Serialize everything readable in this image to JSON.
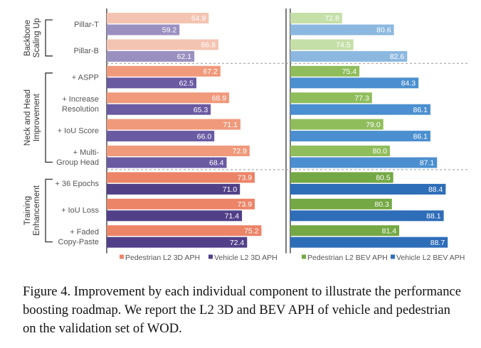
{
  "chart_data": {
    "type": "bar",
    "orientation": "horizontal",
    "categories": [
      [
        "Pillar-T"
      ],
      [
        "Pillar-B"
      ],
      [
        "+ ASPP"
      ],
      [
        "+ Increase",
        "Resolution"
      ],
      [
        "+ IoU Score"
      ],
      [
        "+ Multi-",
        "Group Head"
      ],
      [
        "+ 36 Epochs"
      ],
      [
        "+ IoU Loss"
      ],
      [
        "+ Faded",
        "Copy-Paste"
      ]
    ],
    "groups": [
      {
        "label": [
          "Backbone",
          "Scaling Up"
        ],
        "from": 0,
        "to": 1
      },
      {
        "label": [
          "Neck and Head",
          "Improvement"
        ],
        "from": 2,
        "to": 5
      },
      {
        "label": [
          "Training",
          "Enhancement"
        ],
        "from": 6,
        "to": 8
      }
    ],
    "panels": [
      {
        "series": [
          {
            "name": "Pedestrian L2 3D APH",
            "values": [
              64.9,
              66.8,
              67.2,
              68.9,
              71.1,
              72.9,
              73.9,
              73.9,
              75.2
            ],
            "colors": [
              "#f4c4b2",
              "#f4c4b2",
              "#f0997b",
              "#f0997b",
              "#f0997b",
              "#f0997b",
              "#ec8468",
              "#ec8468",
              "#ec8468"
            ]
          },
          {
            "name": "Vehicle L2 3D APH",
            "values": [
              59.2,
              62.1,
              62.5,
              65.3,
              66.0,
              68.4,
              71.0,
              71.4,
              72.4
            ],
            "colors": [
              "#9a90c0",
              "#9a90c0",
              "#6a5aa2",
              "#6a5aa2",
              "#6a5aa2",
              "#6a5aa2",
              "#514088",
              "#514088",
              "#514088"
            ]
          }
        ],
        "xlim": [
          45,
          80
        ]
      },
      {
        "series": [
          {
            "name": "Pedestrian L2 BEV APH",
            "values": [
              72.8,
              74.5,
              75.4,
              77.3,
              79.0,
              80.0,
              80.5,
              80.3,
              81.4
            ],
            "colors": [
              "#c5dfa8",
              "#c5dfa8",
              "#8fbd5c",
              "#8fbd5c",
              "#8fbd5c",
              "#8fbd5c",
              "#74a844",
              "#74a844",
              "#74a844"
            ]
          },
          {
            "name": "Vehicle L2 BEV APH",
            "values": [
              80.6,
              82.6,
              84.3,
              86.1,
              86.1,
              87.1,
              88.4,
              88.1,
              88.7
            ],
            "colors": [
              "#8cb8e0",
              "#8cb8e0",
              "#4b8fd0",
              "#4b8fd0",
              "#4b8fd0",
              "#4b8fd0",
              "#2e6db8",
              "#2e6db8",
              "#2e6db8"
            ]
          }
        ],
        "xlim": [
          65,
          92
        ]
      }
    ],
    "legend": [
      {
        "name": "Pedestrian L2 3D APH",
        "color": "#ec8468"
      },
      {
        "name": "Vehicle L2 3D APH",
        "color": "#514088"
      },
      {
        "name": "Pedestrian L2 BEV APH",
        "color": "#74a844"
      },
      {
        "name": "Vehicle L2 BEV APH",
        "color": "#2e6db8"
      }
    ],
    "legend_placement": "bottom"
  },
  "caption": "Figure 4. Improvement by each individual component to illustrate the performance boosting roadmap. We report the L2 3D and BEV APH of vehicle and pedestrian on the validation set of WOD."
}
